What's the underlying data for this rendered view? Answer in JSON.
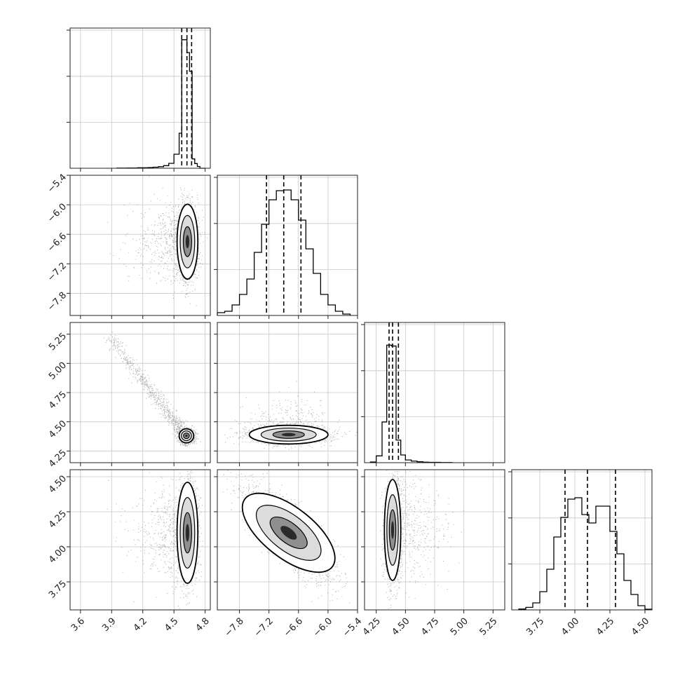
{
  "chart_data": {
    "type": "corner",
    "parameters": [
      {
        "range": [
          3.5,
          4.85
        ],
        "ticks": [
          "3.6",
          "3.9",
          "4.2",
          "4.5",
          "4.8"
        ],
        "tick_values": [
          3.6,
          3.9,
          4.2,
          4.5,
          4.8
        ],
        "quantiles": [
          4.575,
          4.625,
          4.67
        ]
      },
      {
        "range": [
          -8.25,
          -5.4
        ],
        "ticks": [
          "−7.8",
          "−7.2",
          "−6.6",
          "−6.0",
          "−5.4"
        ],
        "tick_values": [
          -7.8,
          -7.2,
          -6.6,
          -6.0,
          -5.4
        ],
        "quantiles": [
          -7.25,
          -6.9,
          -6.55
        ]
      },
      {
        "range": [
          4.15,
          5.35
        ],
        "ticks": [
          "4.25",
          "4.50",
          "4.75",
          "5.00",
          "5.25"
        ],
        "tick_values": [
          4.25,
          4.5,
          4.75,
          5.0,
          5.25
        ],
        "quantiles": [
          4.36,
          4.39,
          4.44
        ]
      },
      {
        "range": [
          3.55,
          4.55
        ],
        "ticks": [
          "3.75",
          "4.00",
          "4.25",
          "4.50"
        ],
        "tick_values": [
          3.75,
          4.0,
          4.25,
          4.5
        ],
        "quantiles": [
          3.93,
          4.09,
          4.29
        ]
      }
    ],
    "histograms": [
      {
        "param": 0,
        "bin_edges": [
          3.95,
          4.05,
          4.15,
          4.25,
          4.3,
          4.35,
          4.4,
          4.45,
          4.5,
          4.55,
          4.575,
          4.6,
          4.625,
          4.65,
          4.675,
          4.7,
          4.725,
          4.75,
          4.8
        ],
        "counts": [
          1,
          2,
          4,
          6,
          9,
          13,
          22,
          42,
          120,
          300,
          1100,
          1100,
          990,
          830,
          80,
          40,
          15,
          0
        ],
        "ymax": 1200
      },
      {
        "param": 1,
        "bin_edges": [
          -8.25,
          -8.1,
          -7.95,
          -7.8,
          -7.65,
          -7.5,
          -7.35,
          -7.2,
          -7.05,
          -6.9,
          -6.75,
          -6.6,
          -6.45,
          -6.3,
          -6.15,
          -6.0,
          -5.85,
          -5.7,
          -5.55
        ],
        "counts": [
          40,
          60,
          150,
          300,
          520,
          900,
          1300,
          1650,
          1780,
          1790,
          1650,
          1360,
          950,
          600,
          300,
          150,
          60,
          20
        ],
        "ymax": 2000
      },
      {
        "param": 2,
        "bin_edges": [
          4.2,
          4.25,
          4.3,
          4.34,
          4.38,
          4.42,
          4.46,
          4.5,
          4.55,
          4.6,
          4.65,
          4.7,
          4.8,
          4.9
        ],
        "counts": [
          15,
          150,
          900,
          2600,
          2580,
          500,
          170,
          60,
          35,
          20,
          12,
          8,
          3
        ],
        "ymax": 3100
      },
      {
        "param": 3,
        "bin_edges": [
          3.6,
          3.65,
          3.7,
          3.75,
          3.8,
          3.85,
          3.9,
          3.95,
          4.0,
          4.05,
          4.1,
          4.15,
          4.2,
          4.25,
          4.3,
          4.35,
          4.4,
          4.45,
          4.5,
          4.55
        ],
        "counts": [
          6,
          18,
          50,
          130,
          290,
          520,
          660,
          790,
          800,
          680,
          620,
          740,
          740,
          560,
          400,
          210,
          110,
          30,
          5
        ],
        "ymax": 1000
      }
    ],
    "scatter_2d": [
      {
        "x_param": 0,
        "y_param": 1,
        "center": [
          4.63,
          -6.75
        ],
        "spread": [
          0.05,
          0.38
        ],
        "tail": "left-to-3.6"
      },
      {
        "x_param": 0,
        "y_param": 2,
        "center": [
          4.62,
          4.38
        ],
        "spread": [
          0.035,
          0.03
        ],
        "tail": "diagonal-to-[3.8,5.3]"
      },
      {
        "x_param": 1,
        "y_param": 2,
        "center": [
          -6.8,
          4.39
        ],
        "spread": [
          0.4,
          0.04
        ],
        "tail": "upward-to-4.9"
      },
      {
        "x_param": 0,
        "y_param": 3,
        "center": [
          4.63,
          4.1
        ],
        "spread": [
          0.05,
          0.18
        ],
        "tail": "left-to-3.6"
      },
      {
        "x_param": 1,
        "y_param": 3,
        "center": [
          -6.8,
          4.1
        ],
        "spread": [
          0.45,
          0.18
        ],
        "tail": "correlation-negative"
      },
      {
        "x_param": 2,
        "y_param": 3,
        "center": [
          4.39,
          4.12
        ],
        "spread": [
          0.035,
          0.18
        ],
        "tail": "right-to-5.0"
      }
    ],
    "grid": true
  }
}
